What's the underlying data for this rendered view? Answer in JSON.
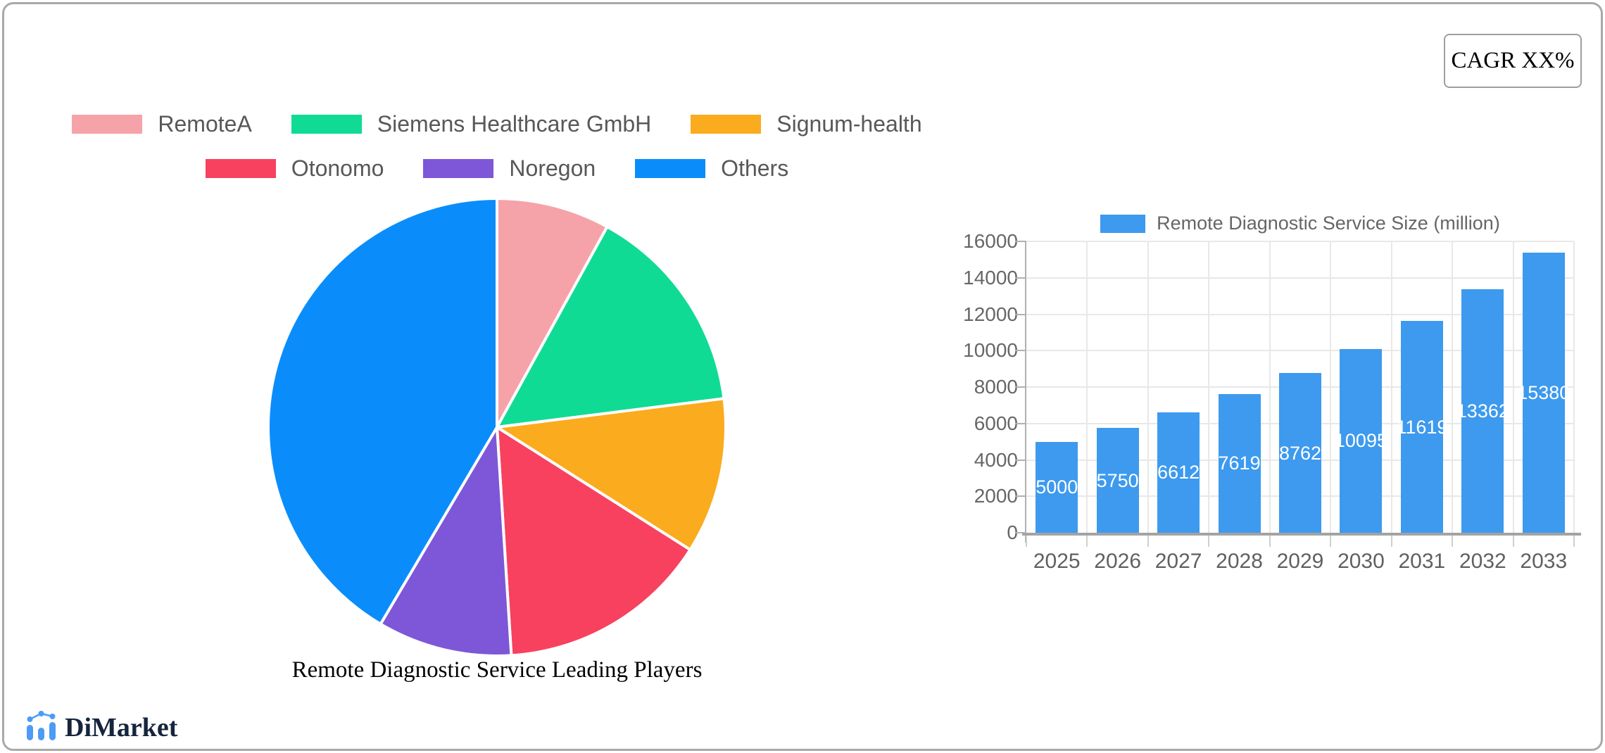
{
  "card": {
    "cagr_label": "CAGR XX%"
  },
  "brand": {
    "name": "DiMarket",
    "icon_color": "#4d9bf5",
    "text_color": "#16243d"
  },
  "chart_data": [
    {
      "type": "pie",
      "title": "Remote Diagnostic Service Leading Players",
      "labels": [
        "RemoteA",
        "Siemens Healthcare GmbH",
        "Signum-health",
        "Otonomo",
        "Noregon",
        "Others"
      ],
      "values_percent": [
        8,
        15,
        11,
        15,
        9.5,
        41.5
      ],
      "colors": [
        "#f5a3a8",
        "#10db95",
        "#fbab1e",
        "#f8415f",
        "#7d57d8",
        "#0a8dfb"
      ],
      "slice_border_color": "#ffffff",
      "start_angle_deg": 0,
      "direction": "clockwise",
      "legend_rows": [
        3,
        3
      ],
      "legend_position": "top"
    },
    {
      "type": "bar",
      "legend": "Remote Diagnostic Service Size (million)",
      "categories": [
        "2025",
        "2026",
        "2027",
        "2028",
        "2029",
        "2030",
        "2031",
        "2032",
        "2033"
      ],
      "values": [
        5000,
        5750,
        6612,
        7619,
        8762,
        10095,
        11619,
        13362,
        15380
      ],
      "bar_color": "#3d9aee",
      "value_label_color": "#ffffff",
      "xlabel": "",
      "ylabel": "",
      "ylim": [
        0,
        16000
      ],
      "yticks": [
        0,
        2000,
        4000,
        6000,
        8000,
        10000,
        12000,
        14000,
        16000
      ],
      "grid": true,
      "legend_position": "top"
    }
  ]
}
